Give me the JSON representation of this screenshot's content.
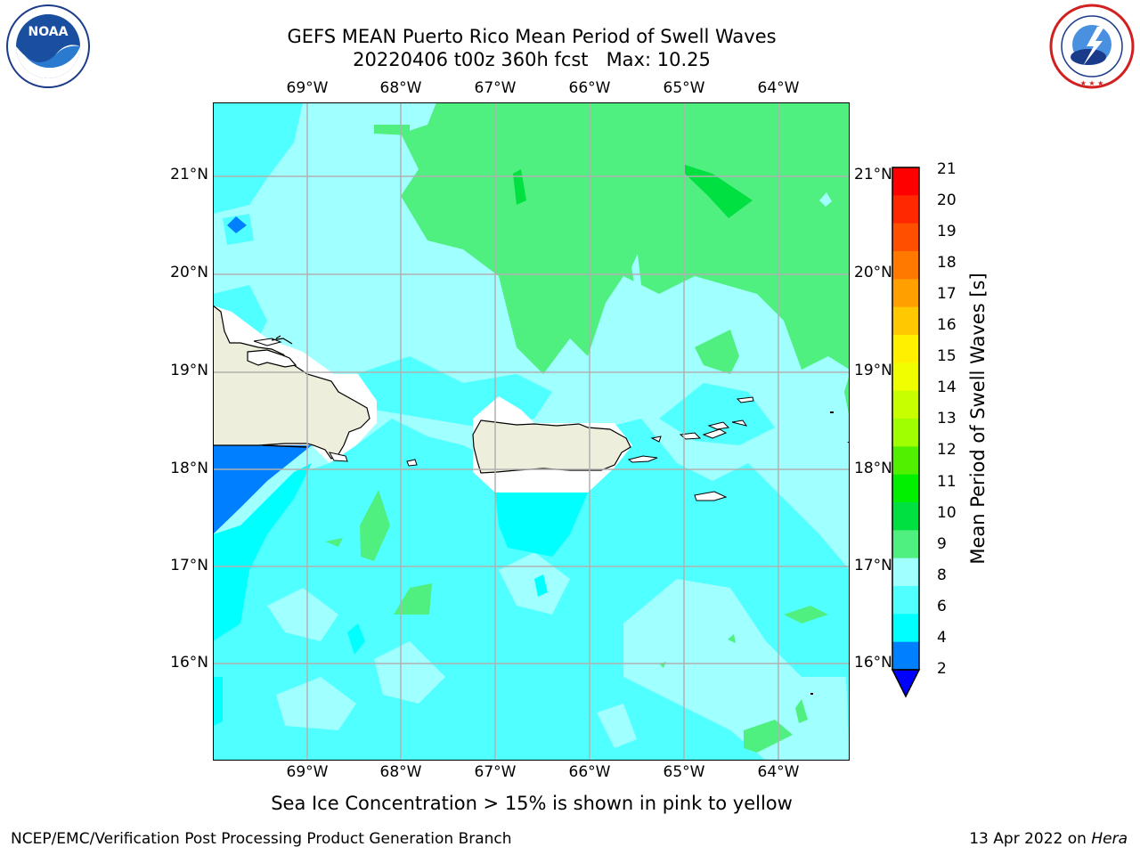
{
  "title": {
    "line1": "GEFS MEAN Puerto Rico Mean Period of Swell Waves",
    "line2": "20220406 t00z 360h fcst   Max: 10.25"
  },
  "logos": {
    "noaa": {
      "icon": "noaa-logo-icon",
      "text": "NOAA",
      "ring_text": "NATIONAL OCEANIC AND ATMOSPHERIC ADMINISTRATION · U.S. DEPARTMENT OF COMMERCE"
    },
    "nws": {
      "icon": "nws-logo-icon",
      "ring_text": "NATIONAL WEATHER SERVICE"
    }
  },
  "map": {
    "lon_labels": [
      "69°W",
      "68°W",
      "67°W",
      "66°W",
      "65°W",
      "64°W"
    ],
    "lat_labels": [
      "21°N",
      "20°N",
      "19°N",
      "18°N",
      "17°N",
      "16°N"
    ],
    "colors": {
      "c2_4": "#0080ff",
      "c4_6": "#00ffff",
      "c6_8": "#50ffff",
      "c8_9": "#a0ffff",
      "c9_10": "#50f080",
      "land": "#eeeedc",
      "grid": "#b0b0b0"
    }
  },
  "colorbar": {
    "label": "Mean Period of Swell Waves [s]",
    "ticks": [
      "21",
      "20",
      "19",
      "18",
      "17",
      "16",
      "15",
      "14",
      "13",
      "12",
      "11",
      "10",
      "9",
      "8",
      "6",
      "4",
      "2"
    ],
    "colors": [
      "#ff0000",
      "#ff2800",
      "#ff5000",
      "#ff7800",
      "#ffa000",
      "#ffc800",
      "#fff000",
      "#f0ff00",
      "#c8ff00",
      "#a0ff00",
      "#50f000",
      "#00f000",
      "#00e040",
      "#50f080",
      "#a0ffff",
      "#50ffff",
      "#00ffff",
      "#0080ff",
      "#0000ff"
    ]
  },
  "note": "Sea Ice Concentration > 15% is shown in pink to yellow",
  "footer": {
    "left": "NCEP/EMC/Verification Post Processing Product Generation Branch",
    "date": "13 Apr 2022 on ",
    "machine": "Hera"
  }
}
